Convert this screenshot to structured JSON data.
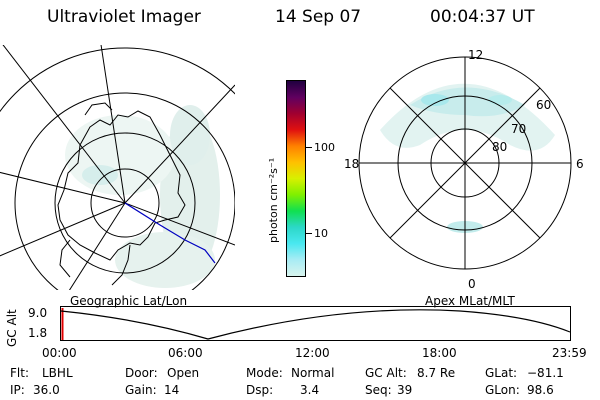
{
  "header": {
    "title": "Ultraviolet Imager",
    "date": "14 Sep 07",
    "time": "00:04:37 UT"
  },
  "colorbar": {
    "unit_label": "photon cm⁻²s⁻¹",
    "ticks": [
      "100",
      "10"
    ],
    "colors": [
      "#d8f4ee",
      "#a8ecf4",
      "#49e8f0",
      "#2cd8c8",
      "#10e050",
      "#80f000",
      "#d8f000",
      "#ffc000",
      "#ff8000",
      "#e01010",
      "#a00030",
      "#600060",
      "#200040"
    ]
  },
  "geo_panel": {
    "label": "Geographic Lat/Lon"
  },
  "apex_panel": {
    "label": "Apex MLat/MLT",
    "mlt_labels": [
      "12",
      "18",
      "6",
      "0"
    ],
    "lat_labels": [
      "60",
      "70",
      "80"
    ]
  },
  "altitude_plot": {
    "ylabel": "GC Alt",
    "yticks": [
      "9.0",
      "1.8"
    ],
    "xticks": [
      "00:00",
      "06:00",
      "12:00",
      "18:00",
      "23:59"
    ]
  },
  "status": {
    "row1": [
      {
        "key": "Flt:",
        "value": "LBHL"
      },
      {
        "key": "Door:",
        "value": "Open"
      },
      {
        "key": "Mode:",
        "value": "Normal"
      },
      {
        "key": "GC Alt:",
        "value": "8.7 Re"
      },
      {
        "key": "GLat:",
        "value": "−81.1"
      }
    ],
    "row2": [
      {
        "key": "IP:",
        "value": "36.0"
      },
      {
        "key": "Gain:",
        "value": "14"
      },
      {
        "key": "Dsp:",
        "value": "3.4"
      },
      {
        "key": "Seq:",
        "value": "39"
      },
      {
        "key": "GLon:",
        "value": "98.6"
      }
    ]
  }
}
